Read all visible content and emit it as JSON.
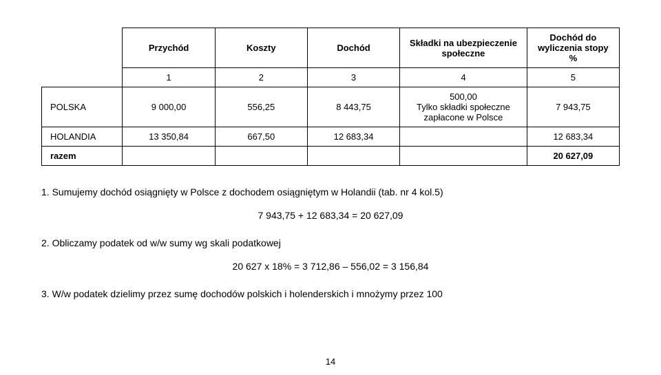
{
  "table": {
    "headers": [
      "",
      "Przychód",
      "Koszty",
      "Dochód",
      "Składki na ubezpieczenie społeczne",
      "Dochód do wyliczenia stopy %"
    ],
    "numrow": [
      "",
      "1",
      "2",
      "3",
      "4",
      "5"
    ],
    "rows": [
      {
        "label": "POLSKA",
        "c1": "9 000,00",
        "c2": "556,25",
        "c3": "8 443,75",
        "c4_lines": [
          "500,00",
          "Tylko składki społeczne",
          "zapłacone w Polsce"
        ],
        "c5": "7 943,75"
      },
      {
        "label": "HOLANDIA",
        "c1": "13 350,84",
        "c2": "667,50",
        "c3": "12 683,34",
        "c4": "",
        "c5": "12 683,34"
      }
    ],
    "total_label": "razem",
    "total_val": "20 627,09"
  },
  "steps": {
    "s1": "1.    Sumujemy dochód osiągnięty w Polsce z dochodem osiągniętym w Holandii (tab. nr 4 kol.5)",
    "s1_calc": "7 943,75 + 12 683,34 = 20 627,09",
    "s2": "2.    Obliczamy podatek od w/w sumy wg skali podatkowej",
    "s2_calc": "20 627  x 18% = 3 712,86 – 556,02 = 3 156,84",
    "s3": "3.    W/w podatek dzielimy przez sumę dochodów polskich i holenderskich i mnożymy przez 100"
  },
  "page": "14"
}
